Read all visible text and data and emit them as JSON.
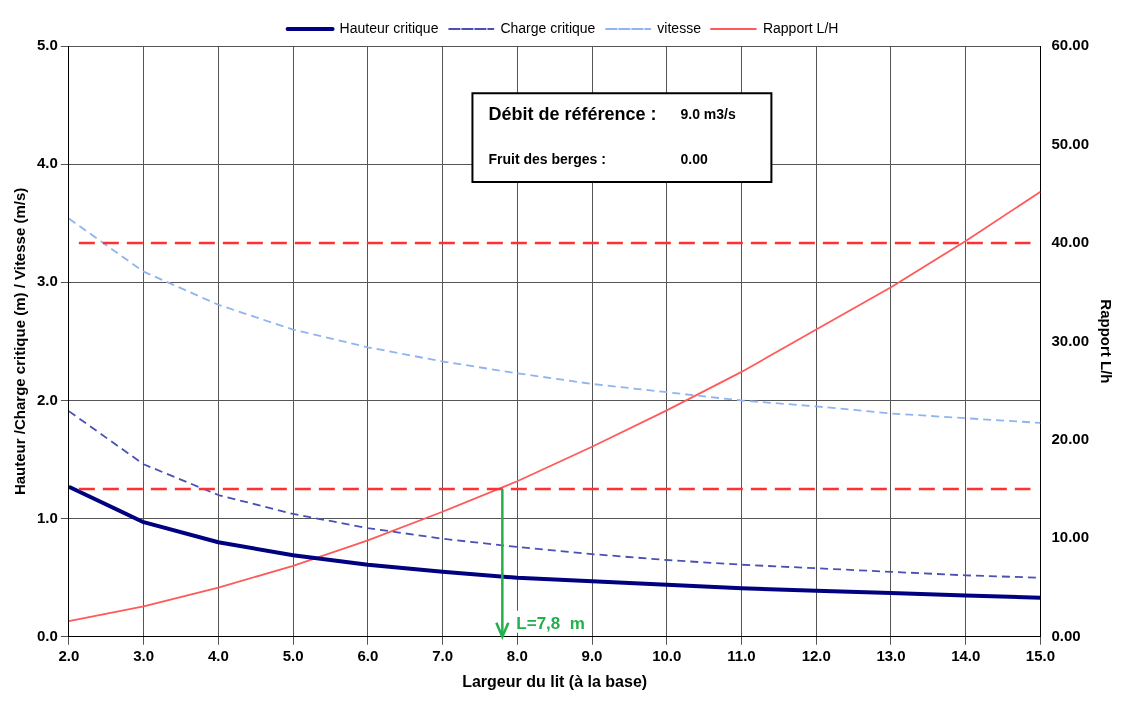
{
  "chart_data": {
    "type": "line",
    "xlabel": "Largeur du lit (à la base)",
    "ylabel": "Hauteur /Charge critique (m) / Vitesse (m/s)",
    "y2label": "Rapport L/h",
    "x": [
      2,
      3,
      4,
      5,
      6,
      7,
      8,
      9,
      10,
      11,
      12,
      13,
      14,
      15
    ],
    "series": [
      {
        "name": "Hauteur critique",
        "color": "#000080",
        "line_style": "solid",
        "values": [
          1.27,
          0.97,
          0.8,
          0.69,
          0.61,
          0.55,
          0.5,
          0.47,
          0.44,
          0.41,
          0.39,
          0.37,
          0.35,
          0.33
        ]
      },
      {
        "name": "Charge critique",
        "color": "#4b50b4",
        "line_style": "dashed",
        "values": [
          1.91,
          1.46,
          1.2,
          1.04,
          0.92,
          0.83,
          0.76,
          0.7,
          0.65,
          0.61,
          0.58,
          0.55,
          0.52,
          0.5
        ]
      },
      {
        "name": "vitesse",
        "color": "#8fb4f0",
        "line_style": "dashed",
        "values": [
          3.54,
          3.09,
          2.81,
          2.6,
          2.45,
          2.33,
          2.23,
          2.14,
          2.07,
          2.0,
          1.95,
          1.89,
          1.85,
          1.81
        ]
      },
      {
        "name": "Rapport L/H",
        "color": "#ff5a5a",
        "line_style": "solid",
        "axis": "y2",
        "values": [
          1.6,
          3.1,
          5.0,
          7.2,
          9.8,
          12.7,
          15.8,
          19.3,
          23.0,
          26.9,
          31.2,
          35.5,
          40.2,
          45.2
        ]
      }
    ],
    "xlim": [
      2,
      15
    ],
    "xticks": [
      {
        "value": 2,
        "label": "2.0"
      },
      {
        "value": 3,
        "label": "3.0"
      },
      {
        "value": 4,
        "label": "4.0"
      },
      {
        "value": 5,
        "label": "5.0"
      },
      {
        "value": 6,
        "label": "6.0"
      },
      {
        "value": 7,
        "label": "7.0"
      },
      {
        "value": 8,
        "label": "8.0"
      },
      {
        "value": 9,
        "label": "9.0"
      },
      {
        "value": 10,
        "label": "10.0"
      },
      {
        "value": 11,
        "label": "11.0"
      },
      {
        "value": 12,
        "label": "12.0"
      },
      {
        "value": 13,
        "label": "13.0"
      },
      {
        "value": 14,
        "label": "14.0"
      },
      {
        "value": 15,
        "label": "15.0"
      }
    ],
    "ylim": [
      0,
      5
    ],
    "yticks": [
      {
        "value": 0,
        "label": "0.0"
      },
      {
        "value": 1,
        "label": "1.0"
      },
      {
        "value": 2,
        "label": "2.0"
      },
      {
        "value": 3,
        "label": "3.0"
      },
      {
        "value": 4,
        "label": "4.0"
      },
      {
        "value": 5,
        "label": "5.0"
      }
    ],
    "y2lim": [
      0,
      60
    ],
    "y2ticks": [
      {
        "value": 0,
        "label": "0.00"
      },
      {
        "value": 10,
        "label": "10.00"
      },
      {
        "value": 20,
        "label": "20.00"
      },
      {
        "value": 30,
        "label": "30.00"
      },
      {
        "value": 40,
        "label": "40.00"
      },
      {
        "value": 50,
        "label": "50.00"
      },
      {
        "value": 60,
        "label": "60.00"
      }
    ],
    "ref_lines": [
      {
        "axis": "y2",
        "value": 40,
        "color": "#ff3030",
        "line_style": "dashed"
      },
      {
        "axis": "y2",
        "value": 15,
        "color": "#ff3030",
        "line_style": "dashed"
      },
      {
        "axis": "x",
        "value": 7.8,
        "label": "L=7,8  m",
        "color": "#22b04b",
        "line_style": "solid"
      }
    ],
    "annotations": [
      "Débit de référence :",
      "9.0 m3/s",
      "Fruit des berges :",
      "0.00"
    ],
    "grid": true,
    "legend": "top",
    "marker": "none"
  }
}
